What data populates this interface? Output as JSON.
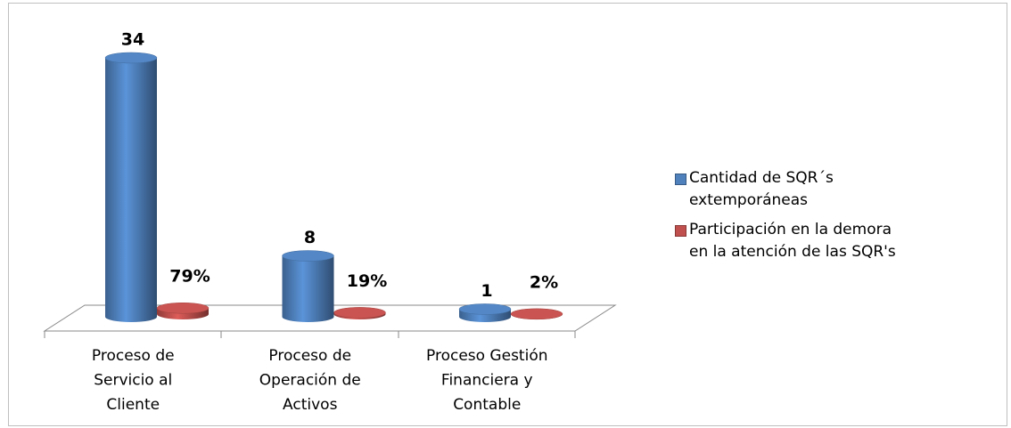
{
  "chart_data": {
    "type": "bar3d",
    "categories": [
      "Proceso de Servicio al Cliente",
      "Proceso de Operación de Activos",
      "Proceso Gestión Financiera y Contable"
    ],
    "series": [
      {
        "name": "Cantidad de SQR´s extemporáneas",
        "color": "#4f81bd",
        "values": [
          34,
          8,
          1
        ]
      },
      {
        "name": "Participación en la demora en la atención de las SQR's",
        "color": "#c0504d",
        "values": [
          0.79,
          0.19,
          0.02
        ],
        "value_labels": [
          "79%",
          "19%",
          "2%"
        ]
      }
    ],
    "ylim": [
      0,
      34
    ]
  }
}
